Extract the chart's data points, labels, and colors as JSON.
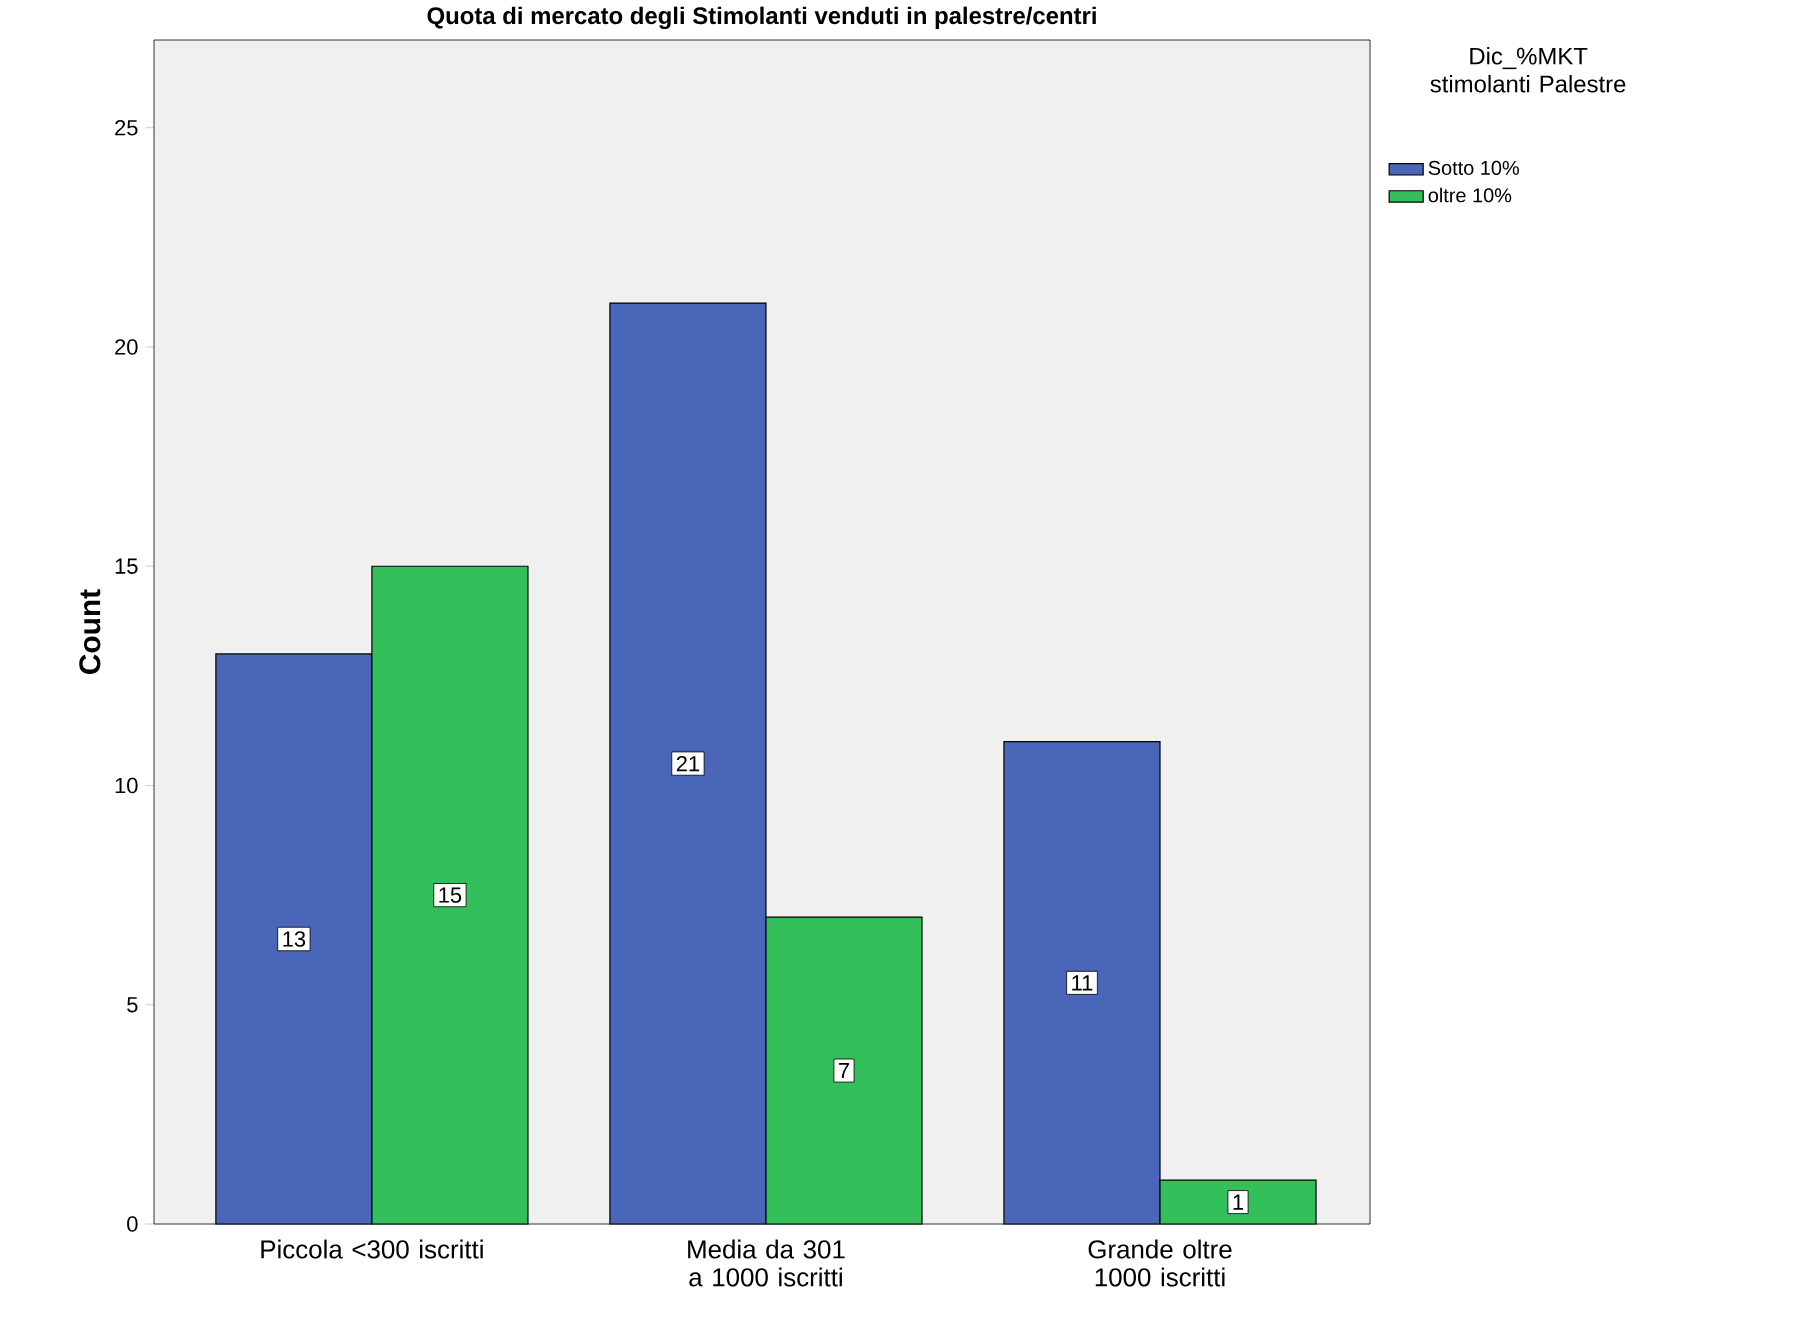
{
  "chart_data": {
    "type": "bar",
    "title": "Quota di mercato degli Stimolanti venduti in palestre/centri",
    "ylabel": "Count",
    "legend_title": "Dic_%MKT stimolanti Palestre",
    "categories": [
      "Piccola <300 iscritti",
      "Media da 301 a 1000 iscritti",
      "Grande oltre 1000 iscritti"
    ],
    "series": [
      {
        "name": "Sotto 10%",
        "color": "#4a66b8",
        "values": [
          13,
          21,
          11
        ]
      },
      {
        "name": "oltre 10%",
        "color": "#33c05a",
        "values": [
          15,
          7,
          1
        ]
      }
    ],
    "ylim": [
      0,
      27
    ],
    "yticks": [
      0,
      5,
      10,
      15,
      20,
      25
    ],
    "data_labels": true,
    "legend": "top right",
    "grid": false
  }
}
